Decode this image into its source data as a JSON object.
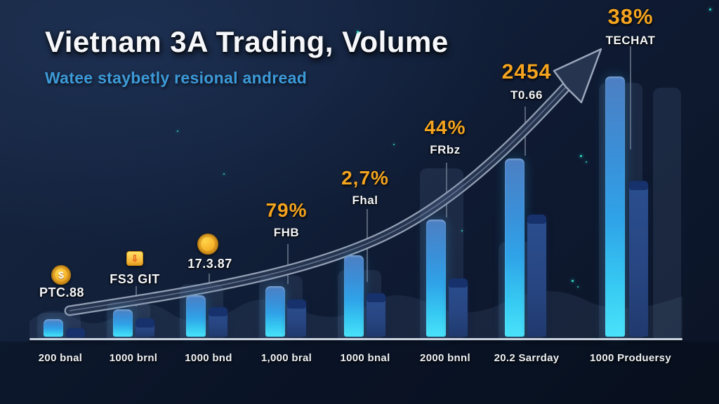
{
  "title": "Vietnam 3A Trading, Volume",
  "subtitle": "Watee staybetly resional andread",
  "colors": {
    "background_start": "#17253f",
    "background_end": "#0b1425",
    "title": "#f5f7fa",
    "subtitle_blue": "#3d9ad8",
    "stat_orange": "#f4a41f",
    "stat_white": "#f3f6fa",
    "bar_primary_top": "#4d7fc2",
    "bar_primary_bottom": "#49e2fa",
    "bar_secondary": "#2b4e8e",
    "bar_secondary_cap": "#16316b",
    "arrow_body": "#26344f",
    "arrow_outline": "#9aa6ba",
    "axis_line": "#c9d1dd",
    "sparkle_teal": "#2fd8c4"
  },
  "chart_data": {
    "type": "bar",
    "title": "Vietnam 3A Trading, Volume",
    "subtitle": "Watee staybetly resional andread",
    "categories": [
      "200 bnal",
      "1000 brnl",
      "1000 bnd",
      "1,000 bral",
      "1000 bnal",
      "2000 bnnl",
      "20.2 Sarrday",
      "1000 Produersy"
    ],
    "series": [
      {
        "name": "primary-volume",
        "values": [
          25,
          39,
          59,
          72,
          116,
          167,
          254,
          371
        ]
      },
      {
        "name": "secondary-volume",
        "values": [
          12,
          26,
          42,
          53,
          62,
          83,
          174,
          222
        ]
      }
    ],
    "ylim": [
      0,
      380
    ],
    "grid": false,
    "legend": "none",
    "trend": "upward-arrow",
    "annotations": [
      {
        "kind": "icon-stat",
        "icon": "dollar-coin-icon",
        "glyph": "$",
        "value": "PTC.88"
      },
      {
        "kind": "icon-stat",
        "icon": "gift-badge-icon",
        "glyph": "⇩",
        "value": "FS3 GIT"
      },
      {
        "kind": "icon-stat",
        "icon": "gold-coin-icon",
        "glyph": "",
        "value": "17.3.87"
      },
      {
        "kind": "pct-stat",
        "value": "79%",
        "label": "FHB"
      },
      {
        "kind": "pct-stat",
        "value": "2,7%",
        "label": "Fhal"
      },
      {
        "kind": "pct-stat",
        "value": "44%",
        "label": "FRbz"
      },
      {
        "kind": "pct-stat",
        "value": "2454",
        "label": "T0.66"
      },
      {
        "kind": "pct-stat",
        "value": "38%",
        "label": "TECHAT"
      }
    ]
  }
}
